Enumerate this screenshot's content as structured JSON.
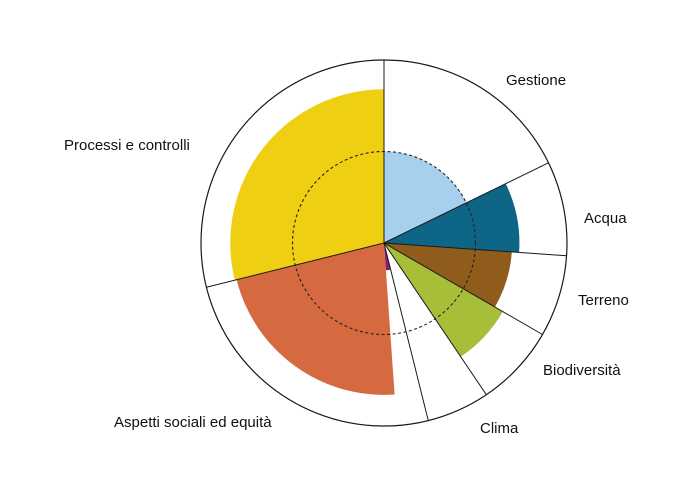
{
  "chart_data": {
    "type": "polar-area",
    "title": "",
    "max_value": 1,
    "reference_circle": {
      "value": 0.5,
      "style": "dashed"
    },
    "categories": [
      {
        "name": "Gestione",
        "start_deg": 0,
        "end_deg": 64,
        "value": 0.5,
        "color": "#a7d0ee"
      },
      {
        "name": "Acqua",
        "start_deg": 64,
        "end_deg": 94,
        "value": 0.74,
        "color": "#0e6686"
      },
      {
        "name": "Terreno",
        "start_deg": 94,
        "end_deg": 120,
        "value": 0.7,
        "color": "#8f5c1c"
      },
      {
        "name": "Biodiversità",
        "start_deg": 120,
        "end_deg": 146,
        "value": 0.75,
        "color": "#a7bf38"
      },
      {
        "name": "Clima",
        "start_deg": 146,
        "end_deg": 166,
        "value": 0.0,
        "color": "#ffffff"
      },
      {
        "name": "",
        "start_deg": 146,
        "end_deg": 158,
        "value": 0.2,
        "color": "#ffffff"
      },
      {
        "name": "",
        "start_deg": 158,
        "end_deg": 166,
        "value": 0.28,
        "color": "#ffffff"
      },
      {
        "name": "",
        "start_deg": 166,
        "end_deg": 176,
        "value": 0.15,
        "color": "#8c1b6b"
      },
      {
        "name": "Aspetti sociali ed equità",
        "start_deg": 176,
        "end_deg": 256,
        "value": 0.83,
        "color": "#d56a40"
      },
      {
        "name": "Processi e controlli",
        "start_deg": 256,
        "end_deg": 360,
        "value": 0.84,
        "color": "#eecf12"
      }
    ],
    "labels": [
      {
        "text": "Gestione"
      },
      {
        "text": "Acqua"
      },
      {
        "text": "Terreno"
      },
      {
        "text": "Biodiversità"
      },
      {
        "text": "Clima"
      },
      {
        "text": "Aspetti sociali ed equità"
      },
      {
        "text": "Processi e controlli"
      }
    ],
    "boundaries_deg": [
      0,
      64,
      94,
      120,
      146,
      166,
      256
    ],
    "grid": false,
    "legend": "none"
  }
}
